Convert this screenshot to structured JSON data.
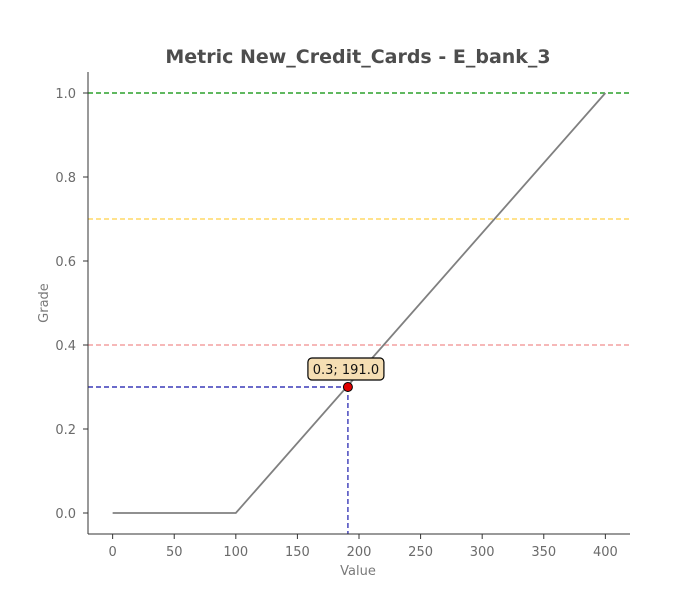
{
  "chart_data": {
    "type": "line",
    "title": "Metric New_Credit_Cards - E_bank_3",
    "xlabel": "Value",
    "ylabel": "Grade",
    "xlim": [
      -20,
      420
    ],
    "ylim": [
      -0.05,
      1.05
    ],
    "x_ticks": [
      0,
      50,
      100,
      150,
      200,
      250,
      300,
      350,
      400
    ],
    "x_tick_labels": [
      "0",
      "50",
      "100",
      "150",
      "200",
      "250",
      "300",
      "350",
      "400"
    ],
    "y_ticks": [
      0.0,
      0.2,
      0.4,
      0.6,
      0.8,
      1.0
    ],
    "y_tick_labels": [
      "0.0",
      "0.2",
      "0.4",
      "0.6",
      "0.8",
      "1.0"
    ],
    "grid": false,
    "series": [
      {
        "color": "#808080",
        "points": [
          [
            0,
            0.0
          ],
          [
            100,
            0.0
          ],
          [
            400,
            1.0
          ]
        ]
      }
    ],
    "threshold_lines": [
      {
        "y": 1.0,
        "color": "#2ca02c"
      },
      {
        "y": 0.7,
        "color": "#ffd966"
      },
      {
        "y": 0.4,
        "color": "#f4a0a0"
      }
    ],
    "highlight_point": {
      "x": 191.0,
      "y": 0.3,
      "label": "0.3; 191.0",
      "marker_color": "#e00000",
      "guide_color": "#3a3ab8",
      "label_bg": "#f5deb3"
    }
  }
}
